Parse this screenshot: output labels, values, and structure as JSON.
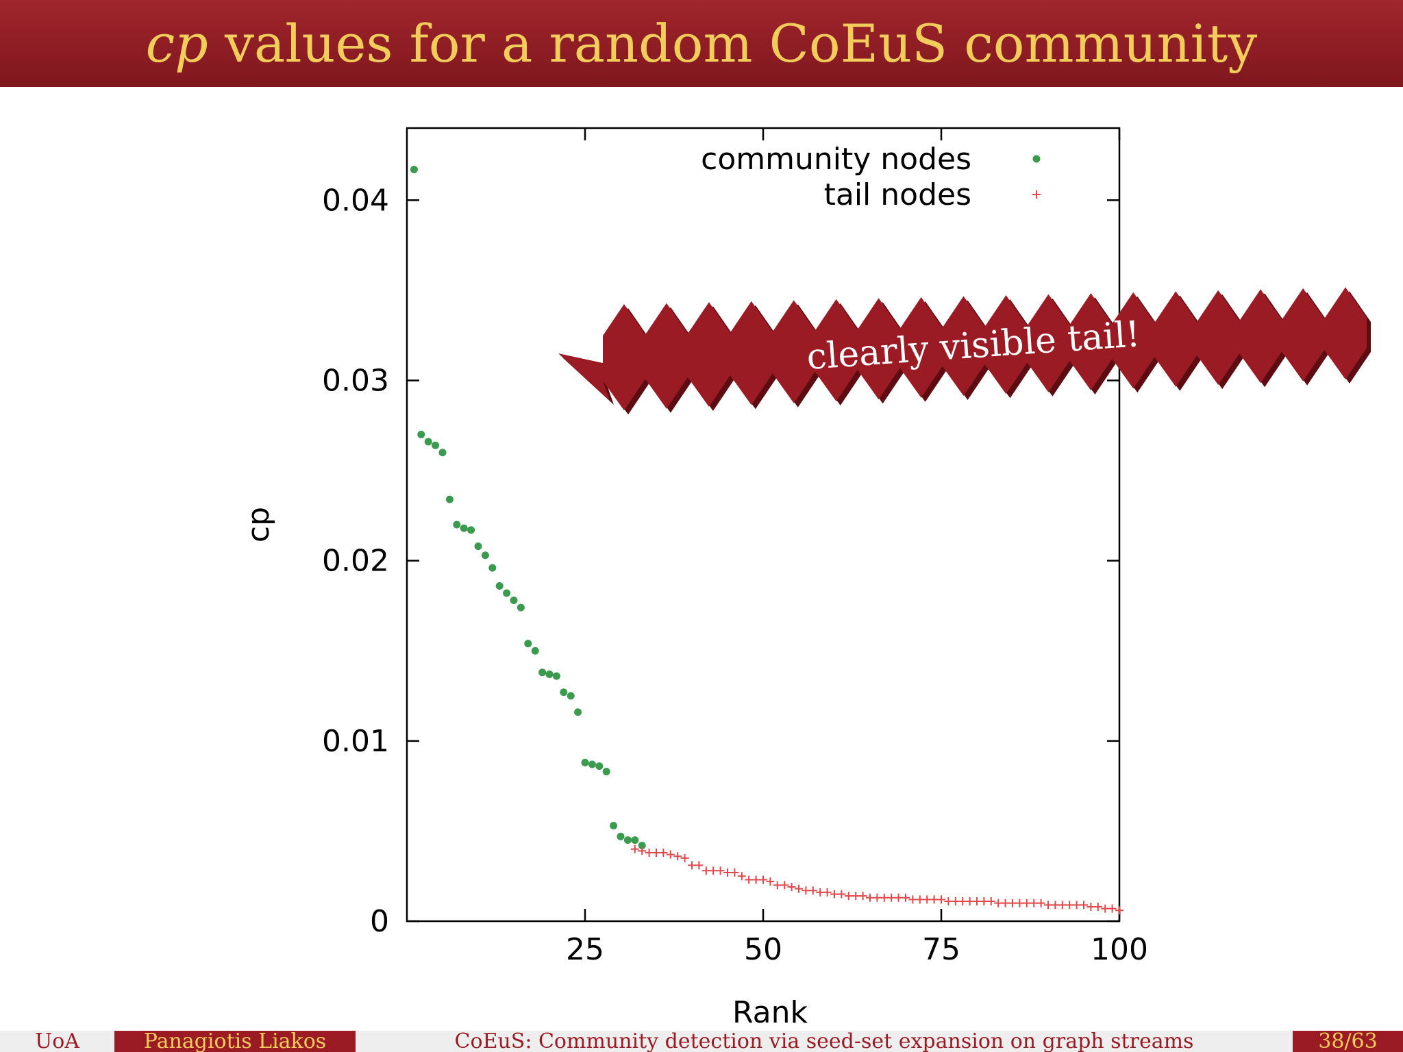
{
  "slide": {
    "title_italic": "cp",
    "title_rest": " values for a random CoEuS community",
    "callout": "clearly visible tail!"
  },
  "footer": {
    "institution": "UoA",
    "author": "Panagiotis Liakos",
    "talk_title": "CoEuS: Community detection via seed-set expansion on graph streams",
    "page": "38/63"
  },
  "colors": {
    "brand_red": "#9b1b25",
    "title_gold": "#f3cd5c",
    "community": "#3a9a4e",
    "tail": "#e0484a"
  },
  "chart_data": {
    "type": "scatter",
    "xlabel": "Rank",
    "ylabel": "cp",
    "xlim": [
      0,
      100
    ],
    "ylim": [
      0,
      0.044
    ],
    "xticks": [
      25,
      50,
      75,
      100
    ],
    "yticks": [
      0,
      0.01,
      0.02,
      0.03,
      0.04
    ],
    "ytick_labels": [
      "0",
      "0.01",
      "0.02",
      "0.03",
      "0.04"
    ],
    "legend_position": "top-right",
    "grid": false,
    "series": [
      {
        "name": "community nodes",
        "marker": "dot",
        "color": "#3a9a4e",
        "x": [
          1,
          2,
          3,
          4,
          5,
          6,
          7,
          8,
          9,
          10,
          11,
          12,
          13,
          14,
          15,
          16,
          17,
          18,
          19,
          20,
          21,
          22,
          23,
          24,
          25,
          26,
          27,
          28,
          29,
          30,
          31,
          32,
          33
        ],
        "y": [
          0.0417,
          0.027,
          0.0266,
          0.0264,
          0.026,
          0.0234,
          0.022,
          0.0218,
          0.0217,
          0.0208,
          0.0203,
          0.0196,
          0.0186,
          0.0182,
          0.0178,
          0.0174,
          0.0154,
          0.015,
          0.0138,
          0.0137,
          0.0136,
          0.0127,
          0.0125,
          0.0116,
          0.0088,
          0.0087,
          0.0086,
          0.0083,
          0.0053,
          0.0047,
          0.0045,
          0.0045,
          0.0042
        ]
      },
      {
        "name": "tail nodes",
        "marker": "plus",
        "color": "#e0484a",
        "x": [
          32,
          33,
          34,
          35,
          36,
          37,
          38,
          39,
          40,
          41,
          42,
          43,
          44,
          45,
          46,
          47,
          48,
          49,
          50,
          51,
          52,
          53,
          54,
          55,
          56,
          57,
          58,
          59,
          60,
          61,
          62,
          63,
          64,
          65,
          66,
          67,
          68,
          69,
          70,
          71,
          72,
          73,
          74,
          75,
          76,
          77,
          78,
          79,
          80,
          81,
          82,
          83,
          84,
          85,
          86,
          87,
          88,
          89,
          90,
          91,
          92,
          93,
          94,
          95,
          96,
          97,
          98,
          99,
          100
        ],
        "y": [
          0.004,
          0.0039,
          0.0038,
          0.0038,
          0.0038,
          0.0037,
          0.0036,
          0.0035,
          0.0031,
          0.0031,
          0.0028,
          0.0028,
          0.0028,
          0.0027,
          0.0027,
          0.0025,
          0.0023,
          0.0023,
          0.0023,
          0.0022,
          0.002,
          0.002,
          0.0019,
          0.0018,
          0.0017,
          0.0017,
          0.0016,
          0.0016,
          0.0015,
          0.0015,
          0.0014,
          0.0014,
          0.0014,
          0.0013,
          0.0013,
          0.0013,
          0.0013,
          0.0013,
          0.0013,
          0.0012,
          0.0012,
          0.0012,
          0.0012,
          0.0012,
          0.0011,
          0.0011,
          0.0011,
          0.0011,
          0.0011,
          0.0011,
          0.0011,
          0.001,
          0.001,
          0.001,
          0.001,
          0.001,
          0.001,
          0.001,
          0.0009,
          0.0009,
          0.0009,
          0.0009,
          0.0009,
          0.0009,
          0.0008,
          0.0008,
          0.0007,
          0.0007,
          0.0006
        ]
      }
    ]
  }
}
